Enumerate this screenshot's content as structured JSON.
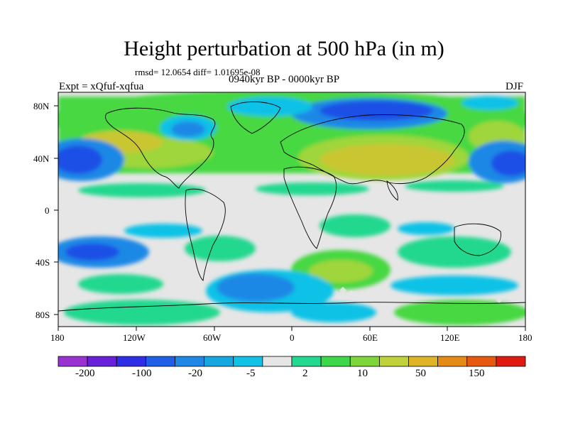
{
  "title": "Height perturbation at 500 hPa (in m)",
  "stats": "rmsd= 12.0654  diff= 1.01695e-08",
  "period": "0940kyr BP - 0000kyr BP",
  "experiment": "Expt = xQfuf-xqfua",
  "season": "DJF",
  "lat_labels": [
    "80N",
    "40N",
    "0",
    "40S",
    "80S"
  ],
  "lon_labels": [
    "180",
    "120W",
    "60W",
    "0",
    "60E",
    "120E",
    "180"
  ],
  "colorbar": {
    "labels": [
      "-200",
      "-100",
      "-20",
      "-5",
      "2",
      "10",
      "50",
      "150"
    ],
    "colors": [
      "#9a32d2",
      "#6a1fd8",
      "#2e2ee6",
      "#1f5ee6",
      "#1e88e6",
      "#17a7e0",
      "#10c2e6",
      "#e6e6e6",
      "#23d88f",
      "#3dd84a",
      "#7fd63c",
      "#c0d23a",
      "#e0b428",
      "#e68a16",
      "#e65a10",
      "#e01a10"
    ]
  },
  "palette": {
    "blue_deep": "#1e50e6",
    "blue": "#1f88e6",
    "cyan": "#11c2e6",
    "neutral": "#e6e6e6",
    "teal_green": "#22d88f",
    "green": "#46d843",
    "yellow_green": "#9fd63a",
    "olive": "#c9c630"
  }
}
